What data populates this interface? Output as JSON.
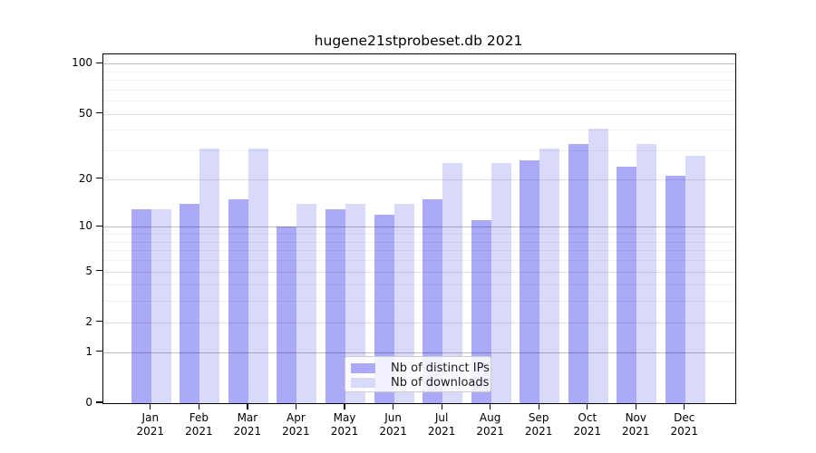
{
  "title": "hugene21stprobeset.db 2021",
  "chart_data": {
    "type": "bar",
    "title": "hugene21stprobeset.db 2021",
    "scale": "log1p",
    "grid": "on",
    "legend_position": "bottom-center",
    "year": "2021",
    "categories": [
      "Jan",
      "Feb",
      "Mar",
      "Apr",
      "May",
      "Jun",
      "Jul",
      "Aug",
      "Sep",
      "Oct",
      "Nov",
      "Dec"
    ],
    "series": [
      {
        "name": "Nb of distinct IPs",
        "color": "#aaaaf8",
        "values": [
          13,
          14,
          15,
          10,
          13,
          12,
          15,
          11,
          26,
          33,
          24,
          21
        ]
      },
      {
        "name": "Nb of downloads",
        "color": "#d9d9fa",
        "values": [
          13,
          31,
          31,
          14,
          14,
          14,
          25,
          25,
          31,
          41,
          33,
          28
        ]
      }
    ],
    "y_ticks": [
      0,
      1,
      2,
      5,
      10,
      20,
      50,
      100
    ],
    "y_minor_ticks": [
      3,
      4,
      6,
      7,
      8,
      9,
      30,
      40,
      60,
      70,
      80,
      90
    ],
    "ylim": [
      0,
      114
    ],
    "xlabel": "",
    "ylabel": ""
  }
}
